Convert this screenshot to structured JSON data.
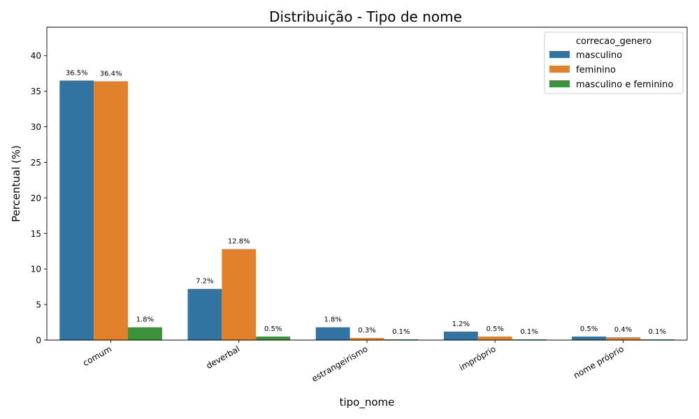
{
  "chart_data": {
    "type": "bar",
    "title": "Distribuição - Tipo de nome",
    "xlabel": "tipo_nome",
    "ylabel": "Percentual (%)",
    "categories": [
      "comum",
      "deverbal",
      "estrangeirismo",
      "impróprio",
      "nome próprio"
    ],
    "series": [
      {
        "name": "masculino",
        "color": "#3274a1",
        "values": [
          36.5,
          7.2,
          1.8,
          1.2,
          0.5
        ],
        "labels": [
          "36.5%",
          "7.2%",
          "1.8%",
          "1.2%",
          "0.5%"
        ]
      },
      {
        "name": "feminino",
        "color": "#e1812c",
        "values": [
          36.4,
          12.8,
          0.3,
          0.5,
          0.4
        ],
        "labels": [
          "36.4%",
          "12.8%",
          "0.3%",
          "0.5%",
          "0.4%"
        ]
      },
      {
        "name": "masculino e feminino",
        "color": "#3a923a",
        "values": [
          1.8,
          0.5,
          0.1,
          0.1,
          0.1
        ],
        "labels": [
          "1.8%",
          "0.5%",
          "0.1%",
          "0.1%",
          "0.1%"
        ]
      }
    ],
    "ylim": [
      0,
      44
    ],
    "yticks": [
      0,
      5,
      10,
      15,
      20,
      25,
      30,
      35,
      40
    ],
    "grid": false,
    "legend": {
      "title": "correcao_genero",
      "placement": "top-right"
    }
  }
}
